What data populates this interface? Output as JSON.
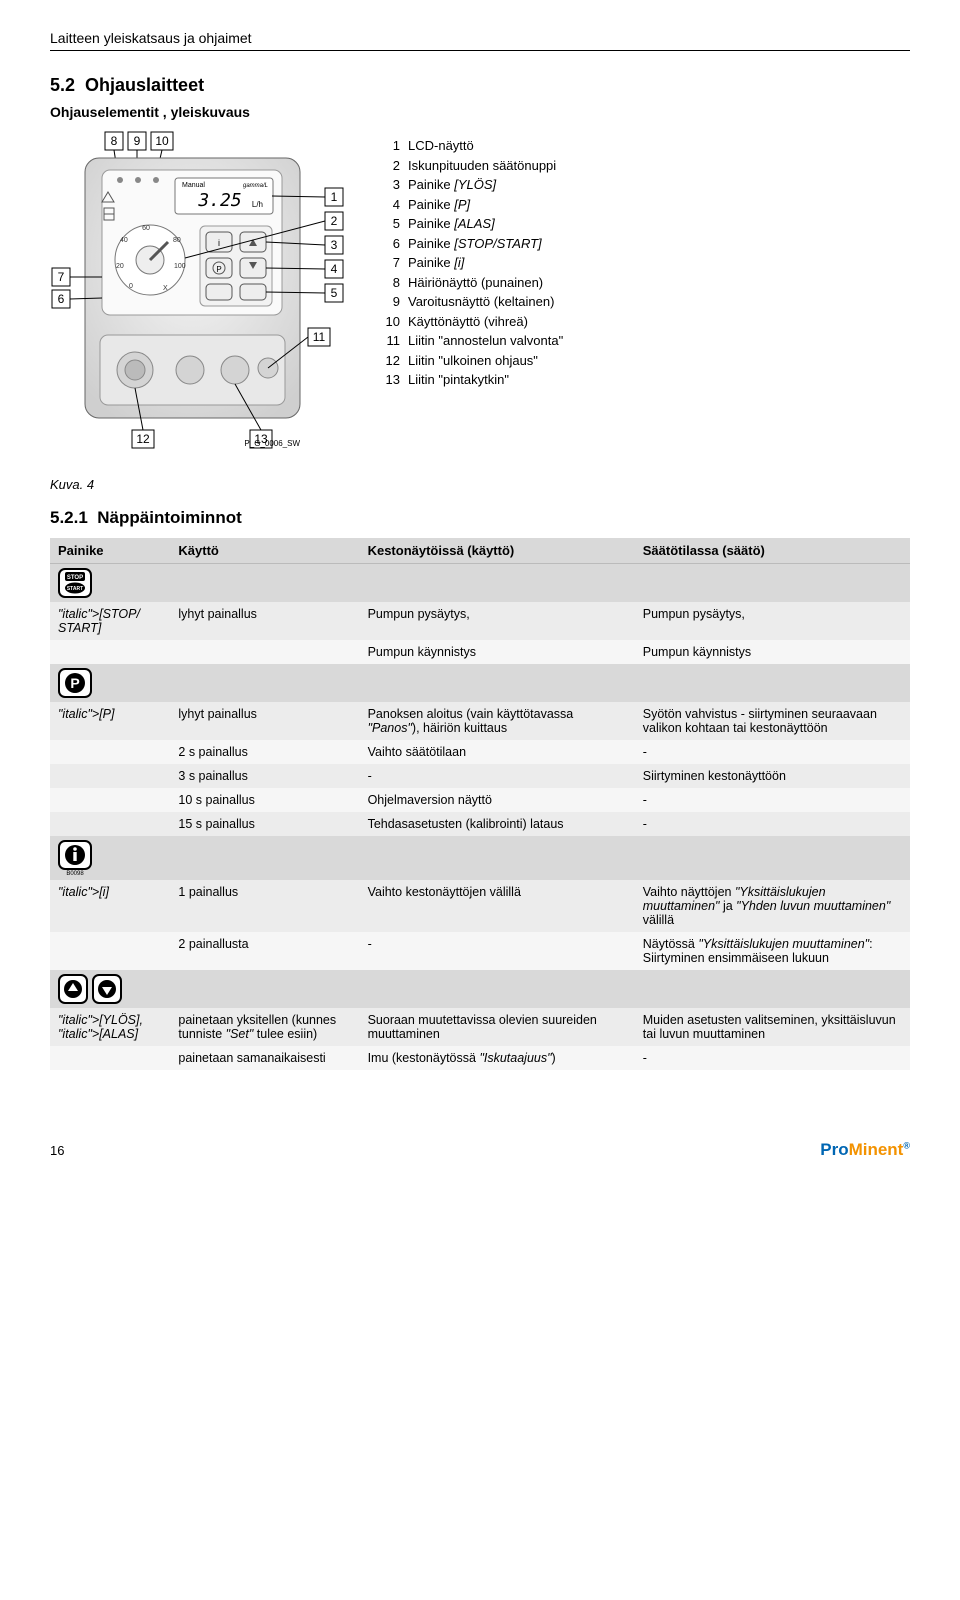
{
  "doc_header": "Laitteen yleiskatsaus ja ohjaimet",
  "section": {
    "number": "5.2",
    "title": "Ohjauslaitteet",
    "subheading": "Ohjauselementit , yleiskuvaus"
  },
  "diagram": {
    "callouts": {
      "top": [
        "8",
        "9",
        "10"
      ],
      "right": [
        "1",
        "2",
        "3",
        "4",
        "5"
      ],
      "left": [
        "7",
        "6"
      ],
      "bottom_left": "12",
      "bottom_right": "13",
      "inner": "11"
    },
    "image_id": "P_G_0006_SW",
    "dial_marks": [
      "0",
      "20",
      "40",
      "60",
      "80",
      "100"
    ],
    "manual_label": "Manual",
    "display_value": "3.25",
    "display_unit": "L/h",
    "brand_small": "gamma/L",
    "scale_label": "X"
  },
  "legend": [
    {
      "n": "1",
      "t": "LCD-näyttö"
    },
    {
      "n": "2",
      "t": "Iskunpituuden säätönuppi"
    },
    {
      "n": "3",
      "t": "Painike [YLÖS]"
    },
    {
      "n": "4",
      "t": "Painike [P]"
    },
    {
      "n": "5",
      "t": "Painike [ALAS]"
    },
    {
      "n": "6",
      "t": "Painike [STOP/START]"
    },
    {
      "n": "7",
      "t": "Painike [i]"
    },
    {
      "n": "8",
      "t": "Häiriönäyttö (punainen)"
    },
    {
      "n": "9",
      "t": "Varoitusnäyttö (keltainen)"
    },
    {
      "n": "10",
      "t": "Käyttönäyttö (vihreä)"
    },
    {
      "n": "11",
      "t": "Liitin \"annostelun valvonta\""
    },
    {
      "n": "12",
      "t": "Liitin \"ulkoinen ohjaus\""
    },
    {
      "n": "13",
      "t": "Liitin \"pintakytkin\""
    }
  ],
  "fig_caption": "Kuva. 4",
  "subsection": {
    "number": "5.2.1",
    "title": "Näppäintoiminnot"
  },
  "table": {
    "headers": [
      "Painike",
      "Käyttö",
      "Kestonäytöissä (käyttö)",
      "Säätötilassa (säätö)"
    ],
    "groups": [
      {
        "icon": "stop_start",
        "rows": [
          [
            "[STOP/\nSTART]",
            "lyhyt painallus",
            "Pumpun pysäytys,",
            "Pumpun pysäytys,"
          ],
          [
            "",
            "",
            "Pumpun käynnistys",
            "Pumpun käynnistys"
          ]
        ]
      },
      {
        "icon": "p_key",
        "rows": [
          [
            "[P]",
            "lyhyt painallus",
            "Panoksen aloitus (vain käyttötavassa \"Panos\"), häiriön kuittaus",
            "Syötön vahvistus - siirtyminen seuraavaan valikon kohtaan tai kestonäyttöön"
          ],
          [
            "",
            "2 s painallus",
            "Vaihto säätötilaan",
            "-"
          ],
          [
            "",
            "3 s painallus",
            "-",
            "Siirtyminen kestonäyttöön"
          ],
          [
            "",
            "10 s painallus",
            "Ohjelmaversion näyttö",
            "-"
          ],
          [
            "",
            "15 s painallus",
            "Tehdasasetusten (kalibrointi) lataus",
            "-"
          ]
        ]
      },
      {
        "icon": "i_key",
        "icon_sub": "B0098",
        "rows": [
          [
            "[i]",
            "1 painallus",
            "Vaihto kestonäyttöjen välillä",
            "Vaihto näyttöjen \"Yksittäislukujen muuttaminen\" ja \"Yhden luvun muuttaminen\" välillä"
          ],
          [
            "",
            "2 painallusta",
            "-",
            "Näytössä \"Yksittäislukujen muuttaminen\": Siirtyminen ensimmäiseen lukuun"
          ]
        ]
      },
      {
        "icon": "arrows",
        "rows": [
          [
            "[YLÖS],\n[ALAS]",
            "painetaan yksitellen (kunnes tunniste \"Set\" tulee esiin)",
            "Suoraan muutettavissa olevien suureiden muuttaminen",
            "Muiden asetusten valitseminen, yksittäisluvun tai luvun muuttaminen"
          ],
          [
            "",
            "painetaan samanaikaisesti",
            "Imu (kestonäytössä \"Iskutaajuus\")",
            "-"
          ]
        ]
      }
    ]
  },
  "footer": {
    "page": "16",
    "brand_left": "Pro",
    "brand_right": "Minent"
  },
  "colors": {
    "header_gray": "#d9d9d9",
    "row_gray": "#ececec",
    "row_light": "#f6f6f6",
    "brand_blue": "#0066b3",
    "brand_orange": "#f39200"
  }
}
